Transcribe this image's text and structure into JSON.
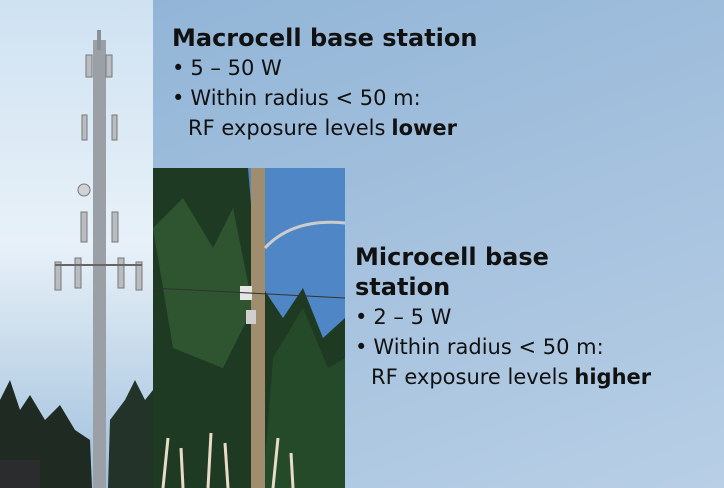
{
  "macrocell": {
    "title": "Macrocell base station",
    "power": "5 – 50 W",
    "radius": "Within radius < 50 m:",
    "exposure": "RF exposure levels",
    "exposure_level": "lower"
  },
  "microcell": {
    "title": "Microcell base station",
    "power": "2 – 5 W",
    "radius": "Within radius < 50 m:",
    "exposure": "RF exposure levels",
    "exposure_level": "higher"
  }
}
